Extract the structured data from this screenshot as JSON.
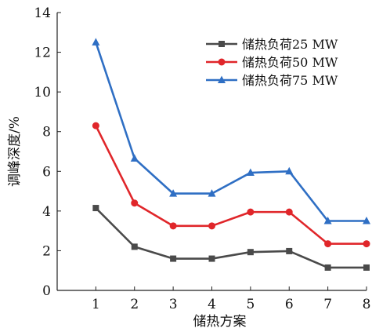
{
  "chart_data": {
    "type": "line",
    "title": "",
    "xlabel": "储热方案",
    "ylabel": "调峰深度/%",
    "x": [
      1,
      2,
      3,
      4,
      5,
      6,
      7,
      8
    ],
    "xticks": [
      "1",
      "2",
      "3",
      "4",
      "5",
      "6",
      "7",
      "8"
    ],
    "xlim": [
      0,
      8
    ],
    "ylim": [
      0,
      14
    ],
    "yticks": [
      "0",
      "2",
      "4",
      "6",
      "8",
      "10",
      "12",
      "14"
    ],
    "grid": false,
    "legend_position": "top-right",
    "series": [
      {
        "name": "储热负荷25 MW",
        "color": "#4a4a4a",
        "marker": "square",
        "values": [
          4.15,
          2.2,
          1.6,
          1.6,
          1.93,
          1.98,
          1.15,
          1.15
        ]
      },
      {
        "name": "储热负荷50 MW",
        "color": "#e0262a",
        "marker": "circle",
        "values": [
          8.3,
          4.4,
          3.25,
          3.25,
          3.95,
          3.95,
          2.35,
          2.35
        ]
      },
      {
        "name": "储热负荷75 MW",
        "color": "#2f6fc4",
        "marker": "triangle",
        "values": [
          12.5,
          6.65,
          4.88,
          4.88,
          5.93,
          6.0,
          3.5,
          3.5
        ]
      }
    ]
  }
}
